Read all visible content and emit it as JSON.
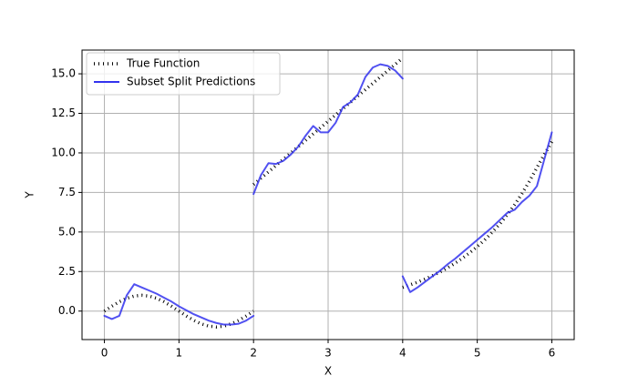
{
  "chart_data": {
    "type": "line",
    "xlabel": "X",
    "ylabel": "Y",
    "x": [
      0,
      0.1,
      0.2,
      0.3,
      0.4,
      0.5,
      0.6,
      0.7,
      0.8,
      0.9,
      1.0,
      1.1,
      1.2,
      1.3,
      1.4,
      1.5,
      1.6,
      1.7,
      1.8,
      1.9,
      2.0,
      2.0,
      2.0,
      2.1,
      2.2,
      2.3,
      2.4,
      2.5,
      2.6,
      2.7,
      2.8,
      2.9,
      3.0,
      3.1,
      3.2,
      3.3,
      3.4,
      3.5,
      3.6,
      3.7,
      3.8,
      3.9,
      4.0,
      4.0,
      4.0,
      4.1,
      4.2,
      4.3,
      4.4,
      4.5,
      4.6,
      4.7,
      4.8,
      4.9,
      5.0,
      5.1,
      5.2,
      5.3,
      5.4,
      5.5,
      5.6,
      5.7,
      5.8,
      5.9,
      6.0
    ],
    "series": [
      {
        "name": "True Function",
        "color": "#000000",
        "linestyle": "dotted",
        "linewidth": 3.5,
        "values": [
          0,
          0.31,
          0.59,
          0.81,
          0.95,
          1,
          0.95,
          0.81,
          0.59,
          0.31,
          0,
          -0.31,
          -0.59,
          -0.81,
          -0.95,
          -1,
          -0.95,
          -0.81,
          -0.59,
          -0.31,
          0,
          null,
          8,
          8.4,
          8.8,
          9.2,
          9.6,
          10,
          10.4,
          10.8,
          11.2,
          11.6,
          12,
          12.4,
          12.8,
          13.2,
          13.6,
          14,
          14.4,
          14.8,
          15.2,
          15.6,
          16,
          null,
          1.5,
          1.66,
          1.83,
          2.02,
          2.24,
          2.47,
          2.73,
          3.02,
          3.34,
          3.69,
          4.08,
          4.5,
          4.98,
          5.5,
          6.08,
          6.72,
          7.43,
          8.21,
          9.07,
          9.9,
          10.7
        ]
      },
      {
        "name": "Subset Split Predictions",
        "color": "#3333ee",
        "linestyle": "solid",
        "linewidth": 2,
        "values": [
          -0.3,
          -0.5,
          -0.3,
          1.0,
          1.7,
          1.5,
          1.3,
          1.1,
          0.85,
          0.6,
          0.3,
          0.05,
          -0.2,
          -0.4,
          -0.6,
          -0.75,
          -0.85,
          -0.85,
          -0.8,
          -0.6,
          -0.3,
          null,
          7.4,
          8.6,
          9.35,
          9.3,
          9.5,
          9.9,
          10.4,
          11.1,
          11.7,
          11.3,
          11.3,
          11.9,
          12.9,
          13.2,
          13.7,
          14.8,
          15.4,
          15.6,
          15.5,
          15.2,
          14.7,
          null,
          2.2,
          1.2,
          1.5,
          1.85,
          2.2,
          2.55,
          2.95,
          3.3,
          3.7,
          4.1,
          4.5,
          4.9,
          5.3,
          5.75,
          6.2,
          6.4,
          6.9,
          7.3,
          7.9,
          9.6,
          11.3
        ]
      }
    ],
    "xlim": [
      -0.3,
      6.3
    ],
    "ylim": [
      -1.8,
      16.5
    ],
    "xticks": [
      0,
      1,
      2,
      3,
      4,
      5,
      6
    ],
    "yticks": [
      {
        "value": 0,
        "label": "0.0"
      },
      2.5,
      {
        "value": 5,
        "label": "5.0"
      },
      7.5,
      {
        "value": 10,
        "label": "10.0"
      },
      12.5,
      {
        "value": 15,
        "label": "15.0"
      }
    ],
    "grid": true,
    "legend": "upper left"
  }
}
